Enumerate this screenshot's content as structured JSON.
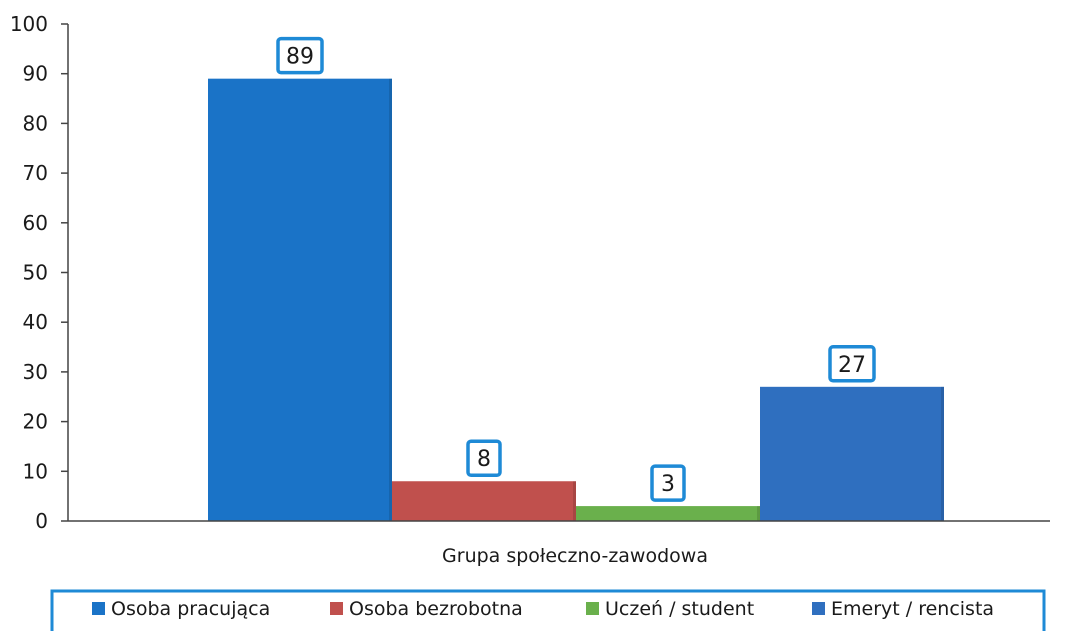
{
  "chart_data": {
    "type": "bar",
    "title": "",
    "xlabel": "Grupa społeczno-zawodowa",
    "ylabel": "",
    "ylim": [
      0,
      100
    ],
    "yticks": [
      0,
      10,
      20,
      30,
      40,
      50,
      60,
      70,
      80,
      90,
      100
    ],
    "grid": false,
    "legend_position": "bottom",
    "series": [
      {
        "name": "Osoba pracująca",
        "values": [
          89
        ],
        "label": "89",
        "color": "#1a73c7"
      },
      {
        "name": "Osoba bezrobotna",
        "values": [
          8
        ],
        "label": "8",
        "color": "#c0504d"
      },
      {
        "name": "Uczeń / student",
        "values": [
          3
        ],
        "label": "3",
        "color": "#6ab04c"
      },
      {
        "name": "Emeryt / rencista",
        "values": [
          27
        ],
        "label": "27",
        "color": "#2f6fbf"
      }
    ],
    "label_box_color": "#1e8ad6"
  }
}
